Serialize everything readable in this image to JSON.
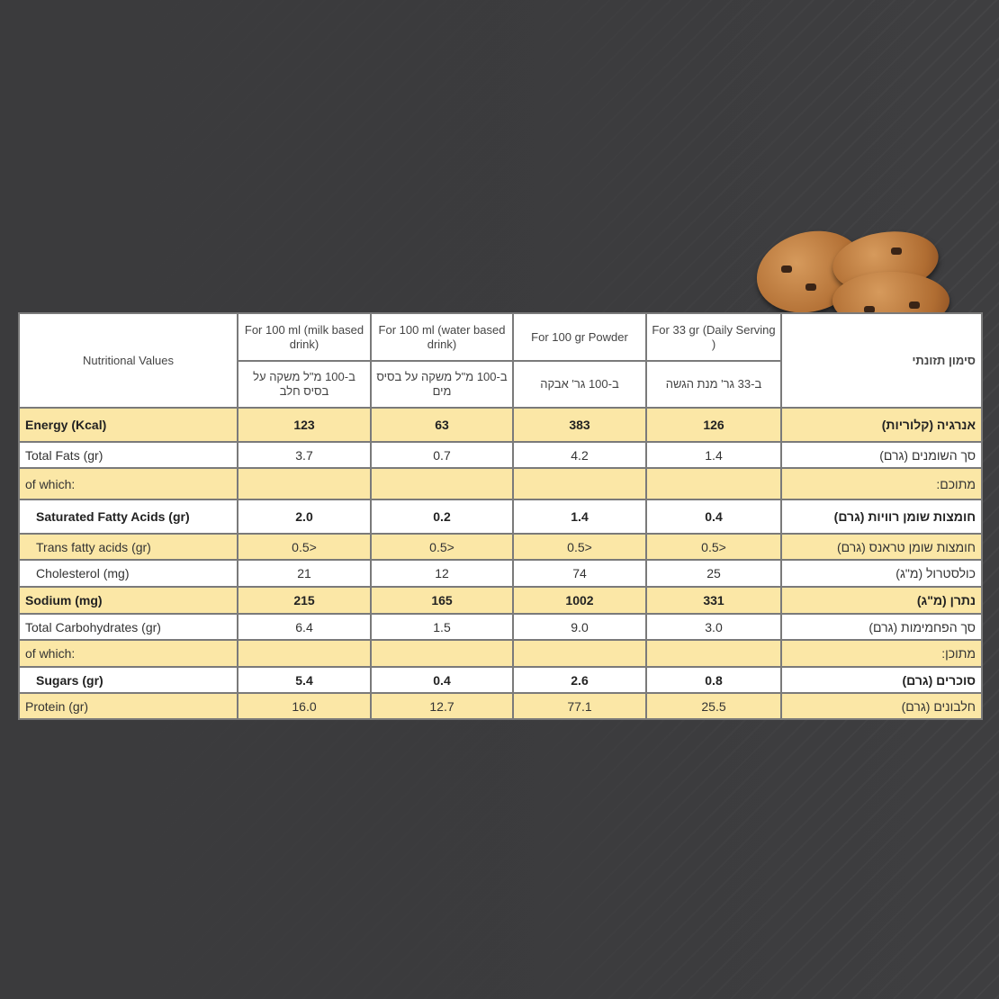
{
  "header": {
    "english_title": "Nutritional Values",
    "hebrew_title": "סימון תזונתי",
    "columns": [
      {
        "en": "For 100 ml (milk based drink)",
        "he": "ב-100 מ\"ל משקה על בסיס חלב"
      },
      {
        "en": "For 100 ml (water based drink)",
        "he": "ב-100 מ\"ל משקה על בסיס מים"
      },
      {
        "en": "For 100 gr Powder",
        "he": "ב-100 גר' אבקה"
      },
      {
        "en": "For 33 gr (Daily Serving )",
        "he": "ב-33 גר' מנת הגשה"
      }
    ]
  },
  "rows": [
    {
      "en": "Energy (Kcal)",
      "he": "אנרגיה (קלוריות)",
      "v": [
        "123",
        "63",
        "383",
        "126"
      ]
    },
    {
      "en": "Total Fats (gr)",
      "he": "סך השומנים (גרם)",
      "v": [
        "3.7",
        "0.7",
        "4.2",
        "1.4"
      ]
    },
    {
      "en": "of which:",
      "he": "מתוכם:",
      "v": [
        "",
        "",
        "",
        ""
      ]
    },
    {
      "en": "Saturated Fatty Acids (gr)",
      "he": "חומצות שומן רוויות (גרם)",
      "v": [
        "2.0",
        "0.2",
        "1.4",
        "0.4"
      ]
    },
    {
      "en": "Trans fatty acids (gr)",
      "he": "חומצות שומן טראנס (גרם)",
      "v": [
        "0.5>",
        "0.5>",
        "0.5>",
        "0.5>"
      ]
    },
    {
      "en": "Cholesterol (mg)",
      "he": "כולסטרול (מ\"ג)",
      "v": [
        "21",
        "12",
        "74",
        "25"
      ]
    },
    {
      "en": "Sodium (mg)",
      "he": "נתרן (מ\"ג)",
      "v": [
        "215",
        "165",
        "1002",
        "331"
      ]
    },
    {
      "en": "Total Carbohydrates (gr)",
      "he": "סך הפחמימות (גרם)",
      "v": [
        "6.4",
        "1.5",
        "9.0",
        "3.0"
      ]
    },
    {
      "en": "of which:",
      "he": "מתוכן:",
      "v": [
        "",
        "",
        "",
        ""
      ]
    },
    {
      "en": "Sugars (gr)",
      "he": "סוכרים (גרם)",
      "v": [
        "5.4",
        "0.4",
        "2.6",
        "0.8"
      ]
    },
    {
      "en": "Protein (gr)",
      "he": "חלבונים (גרם)",
      "v": [
        "16.0",
        "12.7",
        "77.1",
        "25.5"
      ]
    }
  ],
  "colors": {
    "highlight_row": "#fbe7a6",
    "background": "#3e3e40"
  }
}
